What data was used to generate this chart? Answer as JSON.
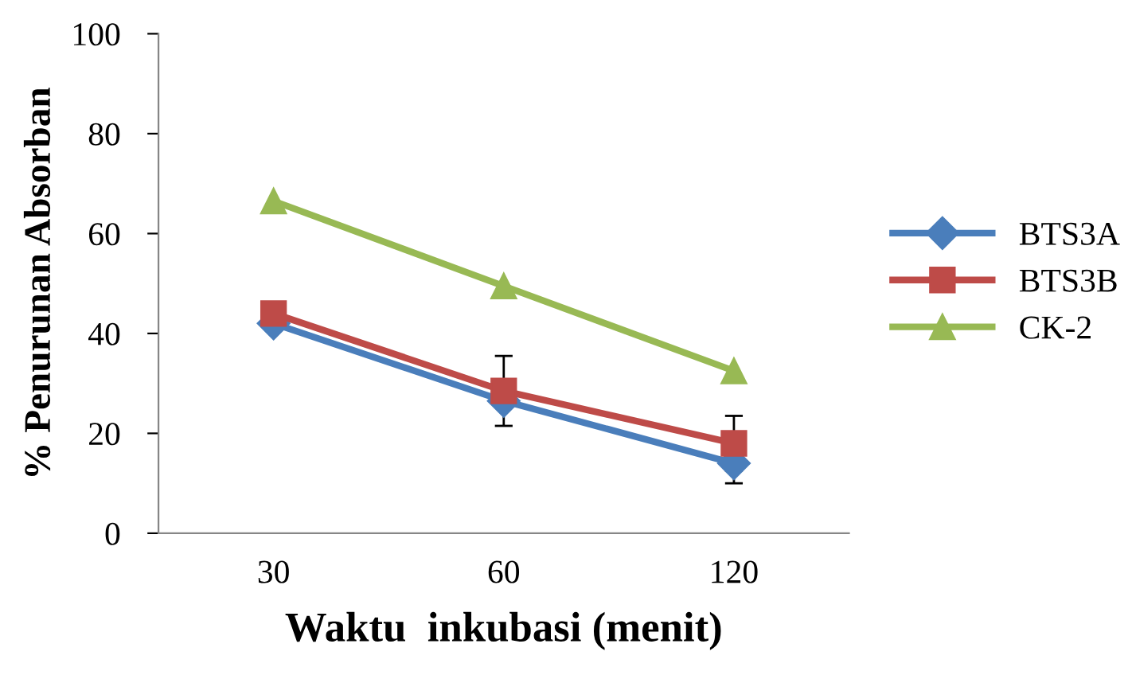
{
  "chart_data": {
    "type": "line",
    "xlabel": "Waktu  inkubasi (menit)",
    "ylabel": "% Penurunan Absorban",
    "categories": [
      "30",
      "60",
      "120"
    ],
    "series": [
      {
        "name": "BTS3A",
        "color": "#4a7ebb",
        "marker": "diamond",
        "values": [
          42,
          26.5,
          14
        ],
        "errors": [
          null,
          null,
          4
        ]
      },
      {
        "name": "BTS3B",
        "color": "#be4b48",
        "marker": "square",
        "values": [
          44,
          28.5,
          18
        ],
        "errors": [
          null,
          7,
          5.5
        ]
      },
      {
        "name": "CK-2",
        "color": "#98b954",
        "marker": "triangle",
        "values": [
          66.5,
          49.5,
          32.5
        ]
      }
    ],
    "ylim": [
      0,
      100
    ],
    "yticks": [
      0,
      20,
      40,
      60,
      80,
      100
    ],
    "grid": false,
    "legend": "right"
  }
}
